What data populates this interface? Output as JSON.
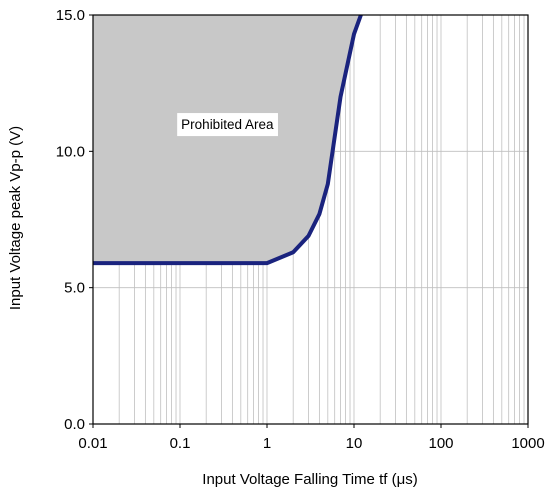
{
  "chart_data": {
    "type": "area",
    "title": "",
    "xlabel": "Input Voltage Falling Time tf (μs)",
    "ylabel": "Input Voltage peak Vp-p (V)",
    "x_scale": "log",
    "xlim": [
      0.01,
      1000
    ],
    "ylim": [
      0.0,
      15.0
    ],
    "x_ticks": [
      "0.01",
      "0.1",
      "1",
      "10",
      "100",
      "1000"
    ],
    "y_ticks": [
      "0.0",
      "5.0",
      "10.0",
      "15.0"
    ],
    "grid": true,
    "series": [
      {
        "name": "",
        "x": [
          0.01,
          0.5,
          1.0,
          2.0,
          3.0,
          4.0,
          5.0,
          7.0,
          10.0,
          12.0
        ],
        "y": [
          5.9,
          5.9,
          5.9,
          6.3,
          6.9,
          7.7,
          8.8,
          12.0,
          14.3,
          15.0
        ]
      }
    ],
    "annotations": [
      {
        "text": "Prohibited Area",
        "x": 0.35,
        "y": 11.0
      }
    ],
    "colors": {
      "line": "#1a237e",
      "fill": "#c8c8c8",
      "grid": "#bfbfbf",
      "axis": "#000000"
    }
  }
}
